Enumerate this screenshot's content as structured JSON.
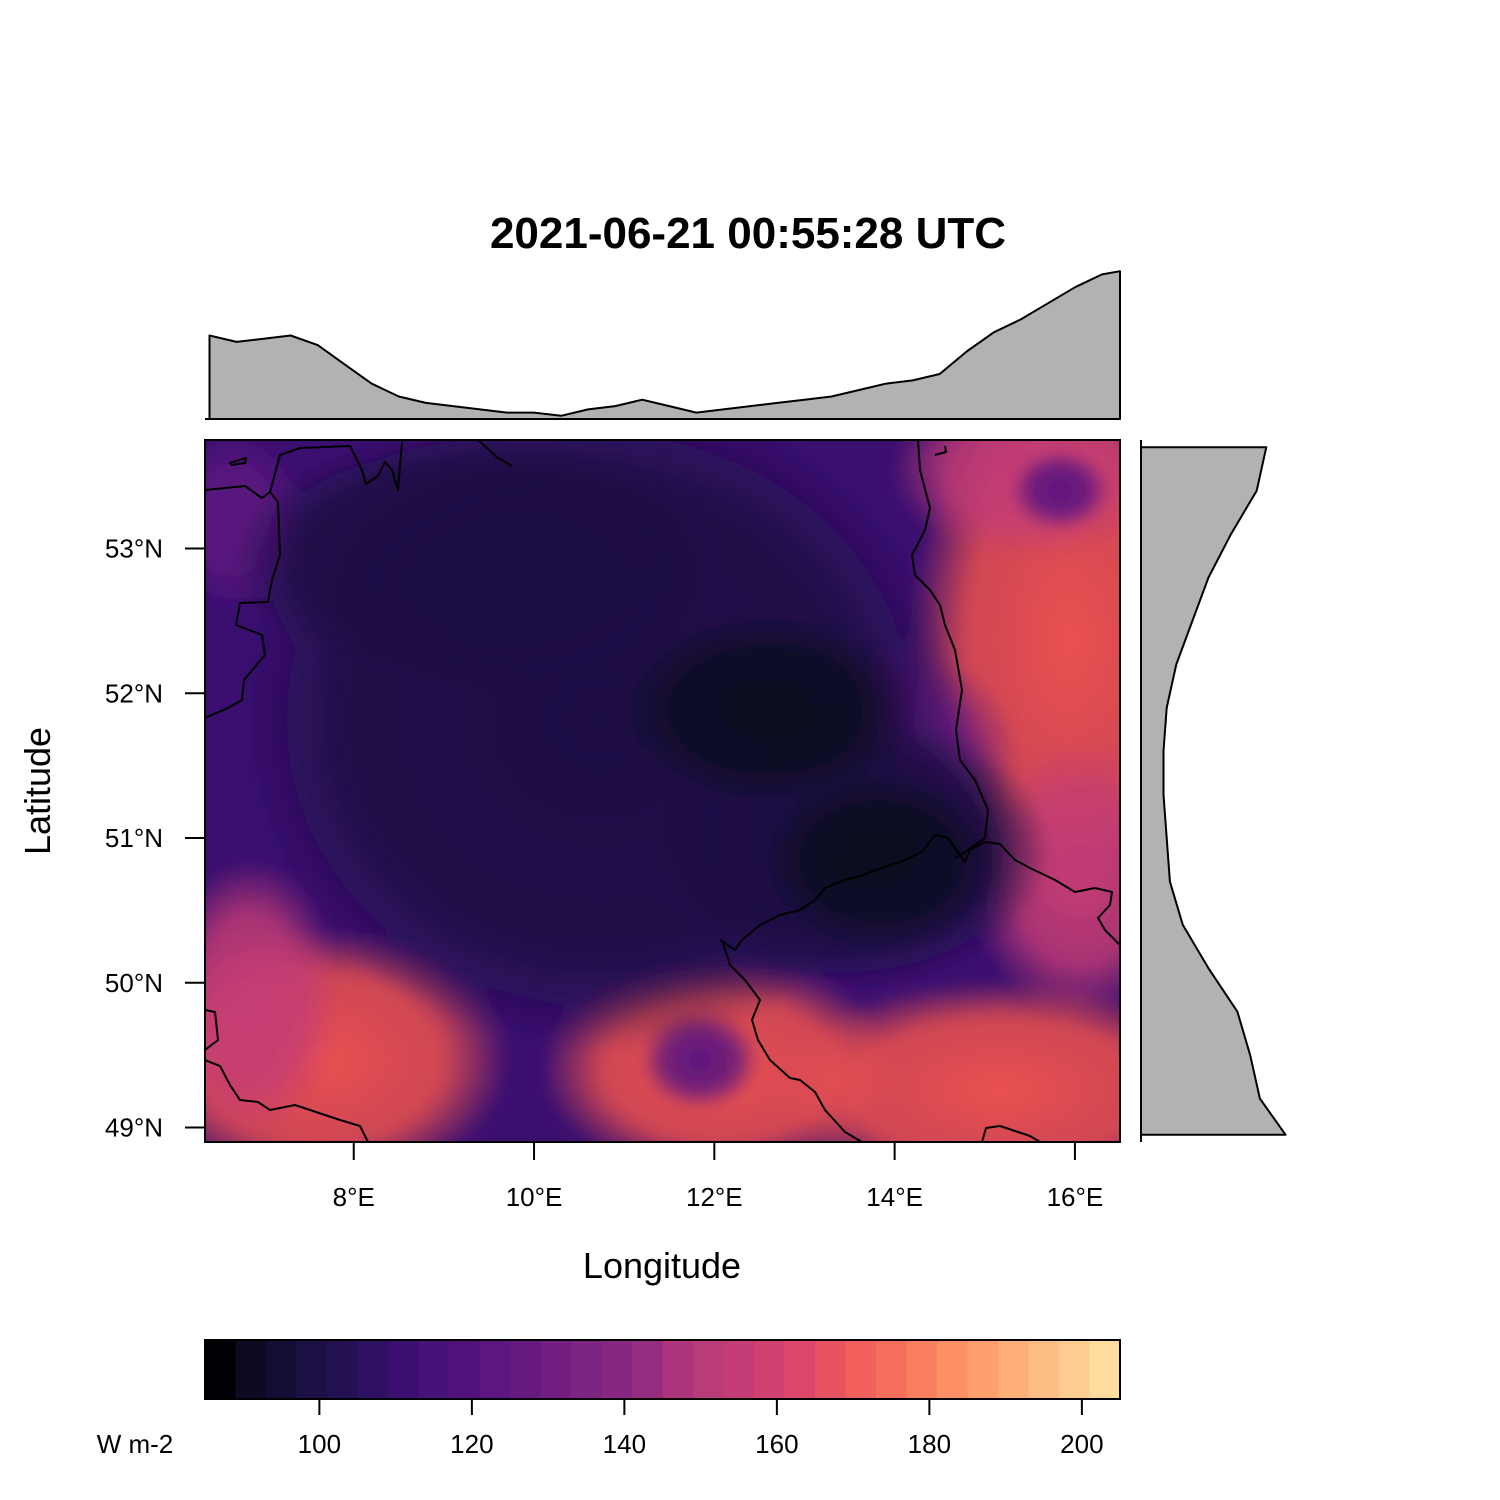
{
  "chart_data": {
    "type": "heatmap",
    "title": "2021-06-21 00:55:28 UTC",
    "xlabel": "Longitude",
    "ylabel": "Latitude",
    "xlim": [
      6.35,
      16.5
    ],
    "ylim": [
      48.9,
      53.75
    ],
    "x_ticks": [
      {
        "value": 8,
        "label": "8°E"
      },
      {
        "value": 10,
        "label": "10°E"
      },
      {
        "value": 12,
        "label": "12°E"
      },
      {
        "value": 14,
        "label": "14°E"
      },
      {
        "value": 16,
        "label": "16°E"
      }
    ],
    "y_ticks": [
      {
        "value": 49,
        "label": "49°N"
      },
      {
        "value": 50,
        "label": "50°N"
      },
      {
        "value": 51,
        "label": "51°N"
      },
      {
        "value": 52,
        "label": "52°N"
      },
      {
        "value": 53,
        "label": "53°N"
      }
    ],
    "colorbar": {
      "unit_label": "W m-2",
      "range": [
        85,
        205
      ],
      "step": 4,
      "ticks": [
        100,
        120,
        140,
        160,
        180,
        200
      ],
      "colors": [
        "#000004",
        "#0d0a21",
        "#140e36",
        "#1c1044",
        "#231151",
        "#2f1163",
        "#3b0f70",
        "#471378",
        "#51127c",
        "#5c167f",
        "#661a80",
        "#721f81",
        "#7d2482",
        "#882781",
        "#942c80",
        "#a1307e",
        "#ad347c",
        "#b93b7a",
        "#c43c75",
        "#d0416f",
        "#db476a",
        "#e85362",
        "#f1605d",
        "#f66e5c",
        "#fa7f5e",
        "#fc8f64",
        "#fe9f6d",
        "#feae77",
        "#febe83",
        "#fecc8f",
        "#fddc9e",
        "#fcfdbf"
      ]
    },
    "field_description_values": {
      "min": 90,
      "max": 165
    },
    "marginal_mean_by_longitude": {
      "x": [
        6.4,
        6.7,
        7.0,
        7.3,
        7.6,
        7.9,
        8.2,
        8.5,
        8.8,
        9.1,
        9.4,
        9.7,
        10.0,
        10.3,
        10.6,
        10.9,
        11.2,
        11.5,
        11.8,
        12.1,
        12.4,
        12.7,
        13.0,
        13.3,
        13.6,
        13.9,
        14.2,
        14.5,
        14.8,
        15.1,
        15.4,
        15.7,
        16.0,
        16.3,
        16.5
      ],
      "values": [
        126,
        124,
        125,
        126,
        123,
        117,
        111,
        107,
        105,
        104,
        103,
        102,
        102,
        101,
        103,
        104,
        106,
        104,
        102,
        103,
        104,
        105,
        106,
        107,
        109,
        111,
        112,
        114,
        121,
        127,
        131,
        136,
        141,
        145,
        146
      ]
    },
    "marginal_mean_by_latitude": {
      "y": [
        53.7,
        53.4,
        53.1,
        52.8,
        52.5,
        52.2,
        51.9,
        51.6,
        51.3,
        51.0,
        50.7,
        50.4,
        50.1,
        49.8,
        49.5,
        49.2,
        48.95
      ],
      "values": [
        139,
        136,
        128,
        121,
        116,
        111,
        108,
        107,
        107,
        108,
        109,
        113,
        121,
        130,
        134,
        137,
        145
      ]
    }
  }
}
